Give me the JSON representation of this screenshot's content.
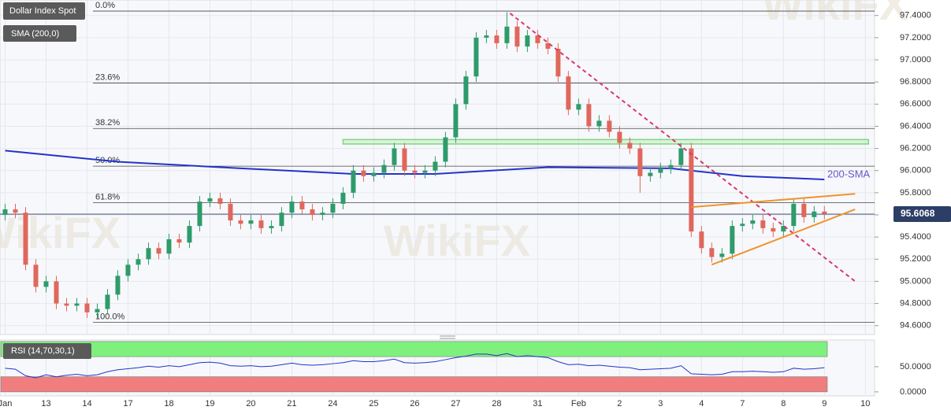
{
  "chart_data": {
    "type": "candlestick",
    "title": "Dollar Index Spot",
    "indicator_label": "SMA (200,0)",
    "watermark": "WikiFX",
    "up_color": "#2e9b6b",
    "down_color": "#e0675c",
    "grid": true,
    "xlim": [
      -0.5,
      84.9
    ],
    "xticks": [
      {
        "value": 0,
        "label": "Jan"
      },
      {
        "value": 4,
        "label": "13"
      },
      {
        "value": 8,
        "label": "14"
      },
      {
        "value": 12,
        "label": "17"
      },
      {
        "value": 16,
        "label": "18"
      },
      {
        "value": 20,
        "label": "19"
      },
      {
        "value": 24,
        "label": "20"
      },
      {
        "value": 28,
        "label": "21"
      },
      {
        "value": 32,
        "label": "24"
      },
      {
        "value": 36,
        "label": "25"
      },
      {
        "value": 40,
        "label": "26"
      },
      {
        "value": 44,
        "label": "27"
      },
      {
        "value": 48,
        "label": "28"
      },
      {
        "value": 52,
        "label": "31"
      },
      {
        "value": 56,
        "label": "Feb"
      },
      {
        "value": 60,
        "label": "2"
      },
      {
        "value": 64,
        "label": "3"
      },
      {
        "value": 68,
        "label": "4"
      },
      {
        "value": 72,
        "label": "7"
      },
      {
        "value": 76,
        "label": "8"
      },
      {
        "value": 80,
        "label": "9"
      },
      {
        "value": 84,
        "label": "10"
      }
    ],
    "ylim": [
      94.52,
      97.54
    ],
    "yticks": [
      {
        "value": 94.6,
        "label": "94.6000"
      },
      {
        "value": 94.8,
        "label": "94.8000"
      },
      {
        "value": 95.0,
        "label": "95.0000"
      },
      {
        "value": 95.2,
        "label": "95.2000"
      },
      {
        "value": 95.4,
        "label": "95.4000"
      },
      {
        "value": 95.6,
        "label": "95.6000"
      },
      {
        "value": 95.8,
        "label": "95.8000"
      },
      {
        "value": 96.0,
        "label": "96.0000"
      },
      {
        "value": 96.2,
        "label": "96.2000"
      },
      {
        "value": 96.4,
        "label": "96.4000"
      },
      {
        "value": 96.6,
        "label": "96.6000"
      },
      {
        "value": 96.8,
        "label": "96.8000"
      },
      {
        "value": 97.0,
        "label": "97.0000"
      },
      {
        "value": 97.2,
        "label": "97.2000"
      },
      {
        "value": 97.4,
        "label": "97.4000"
      }
    ],
    "open": [
      95.6,
      95.65,
      95.62,
      95.15,
      94.95,
      95.0,
      94.8,
      94.78,
      94.8,
      94.72,
      94.75,
      94.88,
      95.05,
      95.15,
      95.2,
      95.3,
      95.25,
      95.38,
      95.35,
      95.5,
      95.72,
      95.75,
      95.7,
      95.55,
      95.52,
      95.55,
      95.48,
      95.5,
      95.62,
      95.72,
      95.65,
      95.6,
      95.62,
      95.7,
      95.8,
      96.0,
      95.95,
      95.98,
      96.05,
      96.2,
      96.0,
      95.98,
      96.0,
      96.08,
      96.3,
      96.6,
      96.85,
      97.2,
      97.22,
      97.15,
      97.3,
      97.12,
      97.22,
      97.15,
      97.1,
      96.85,
      96.55,
      96.6,
      96.4,
      96.45,
      96.35,
      96.25,
      96.2,
      95.95,
      95.98,
      96.02,
      96.05,
      96.2,
      95.45,
      95.3,
      95.22,
      95.25,
      95.5,
      95.52,
      95.55,
      95.48,
      95.45,
      95.5,
      95.7,
      95.58,
      95.63
    ],
    "high": [
      95.7,
      95.7,
      95.67,
      95.2,
      95.05,
      95.05,
      94.85,
      94.85,
      94.85,
      94.8,
      94.93,
      95.1,
      95.2,
      95.25,
      95.35,
      95.35,
      95.43,
      95.43,
      95.55,
      95.77,
      95.8,
      95.8,
      95.75,
      95.6,
      95.6,
      95.6,
      95.55,
      95.67,
      95.77,
      95.77,
      95.7,
      95.67,
      95.75,
      95.85,
      96.05,
      96.05,
      96.03,
      96.1,
      96.25,
      96.25,
      96.05,
      96.05,
      96.13,
      96.35,
      96.65,
      96.9,
      97.25,
      97.27,
      97.27,
      97.43,
      97.35,
      97.27,
      97.27,
      97.2,
      97.15,
      96.9,
      96.65,
      96.65,
      96.5,
      96.5,
      96.4,
      96.3,
      96.25,
      96.03,
      96.07,
      96.1,
      96.25,
      96.25,
      95.5,
      95.35,
      95.3,
      95.55,
      95.57,
      95.6,
      95.6,
      95.53,
      95.55,
      95.75,
      95.75,
      95.68,
      95.68
    ],
    "low": [
      95.55,
      95.57,
      95.1,
      94.9,
      94.9,
      94.75,
      94.73,
      94.73,
      94.67,
      94.67,
      94.7,
      94.83,
      95.0,
      95.1,
      95.15,
      95.2,
      95.2,
      95.3,
      95.3,
      95.45,
      95.67,
      95.65,
      95.5,
      95.47,
      95.47,
      95.43,
      95.43,
      95.45,
      95.57,
      95.6,
      95.55,
      95.55,
      95.57,
      95.65,
      95.75,
      95.9,
      95.9,
      95.93,
      96.0,
      95.95,
      95.93,
      95.93,
      95.95,
      96.03,
      96.25,
      96.55,
      96.8,
      97.15,
      97.1,
      97.1,
      97.07,
      97.07,
      97.1,
      97.05,
      96.8,
      96.5,
      96.5,
      96.35,
      96.35,
      96.3,
      96.2,
      96.15,
      95.8,
      95.9,
      95.93,
      95.97,
      96.0,
      95.4,
      95.25,
      95.17,
      95.17,
      95.2,
      95.45,
      95.47,
      95.43,
      95.4,
      95.4,
      95.45,
      95.53,
      95.53,
      95.56
    ],
    "close": [
      95.65,
      95.62,
      95.15,
      94.95,
      95.0,
      94.8,
      94.78,
      94.8,
      94.72,
      94.75,
      94.88,
      95.05,
      95.15,
      95.2,
      95.3,
      95.25,
      95.38,
      95.35,
      95.5,
      95.72,
      95.75,
      95.7,
      95.55,
      95.52,
      95.55,
      95.48,
      95.5,
      95.62,
      95.72,
      95.65,
      95.6,
      95.62,
      95.7,
      95.8,
      96.0,
      95.95,
      95.98,
      96.05,
      96.2,
      96.0,
      95.98,
      96.0,
      96.08,
      96.3,
      96.6,
      96.85,
      97.2,
      97.22,
      97.15,
      97.3,
      97.12,
      97.22,
      97.15,
      97.1,
      96.85,
      96.55,
      96.6,
      96.4,
      96.45,
      96.35,
      96.25,
      96.2,
      95.95,
      95.98,
      96.02,
      96.05,
      96.2,
      95.45,
      95.3,
      95.22,
      95.25,
      95.5,
      95.52,
      95.55,
      95.48,
      95.45,
      95.5,
      95.7,
      95.58,
      95.63,
      95.61
    ],
    "last_price": 95.6068,
    "sma": {
      "name": "200-SMA",
      "color": "#2233cc",
      "x": [
        0,
        11,
        23,
        34,
        42,
        53,
        65,
        72,
        80
      ],
      "values": [
        96.18,
        96.08,
        96.02,
        95.97,
        95.97,
        96.03,
        96.02,
        95.95,
        95.92
      ]
    },
    "fib_levels": [
      {
        "label": "0.0%",
        "value": 97.44
      },
      {
        "label": "23.6%",
        "value": 96.79
      },
      {
        "label": "38.2%",
        "value": 96.38
      },
      {
        "label": "50.0%",
        "value": 96.04
      },
      {
        "label": "61.8%",
        "value": 95.71
      },
      {
        "label": "100.0%",
        "value": 94.63
      }
    ],
    "trendlines": [
      {
        "color": "#d63a6a",
        "dashed": true,
        "x": [
          49.3,
          83.0
        ],
        "y": [
          97.42,
          95.0
        ]
      },
      {
        "color": "#f0922c",
        "dashed": false,
        "x": [
          67.0,
          83.0
        ],
        "y": [
          95.67,
          95.79
        ]
      },
      {
        "color": "#f0922c",
        "dashed": false,
        "x": [
          69.0,
          83.0
        ],
        "y": [
          95.15,
          95.65
        ]
      }
    ],
    "resistance_zone": {
      "color": "#7ed67e",
      "x": [
        33.0,
        84.3
      ],
      "y": [
        96.24,
        96.28
      ]
    },
    "rsi": {
      "label": "RSI (14,70,30,1)",
      "color": "#2233cc",
      "ylim": [
        -8,
        103
      ],
      "yticks": [
        {
          "value": 0,
          "label": "0.0000"
        },
        {
          "value": 50,
          "label": "50.0000"
        }
      ],
      "overbought": [
        70,
        100
      ],
      "overbought_color": "#7ef07e",
      "oversold": [
        0,
        30
      ],
      "oversold_color": "#f07e7e",
      "values": [
        47,
        45,
        32,
        28,
        34,
        30,
        33,
        35,
        32,
        34,
        40,
        44,
        46,
        48,
        51,
        49,
        52,
        50,
        54,
        58,
        59,
        57,
        52,
        51,
        52,
        50,
        51,
        54,
        57,
        54,
        53,
        54,
        56,
        58,
        62,
        60,
        60,
        62,
        65,
        58,
        57,
        58,
        60,
        64,
        68,
        71,
        75,
        75,
        72,
        76,
        70,
        72,
        70,
        68,
        60,
        54,
        55,
        52,
        53,
        51,
        49,
        48,
        44,
        45,
        46,
        47,
        52,
        36,
        35,
        34,
        35,
        40,
        40,
        41,
        40,
        39,
        40,
        47,
        45,
        46,
        48
      ]
    }
  }
}
